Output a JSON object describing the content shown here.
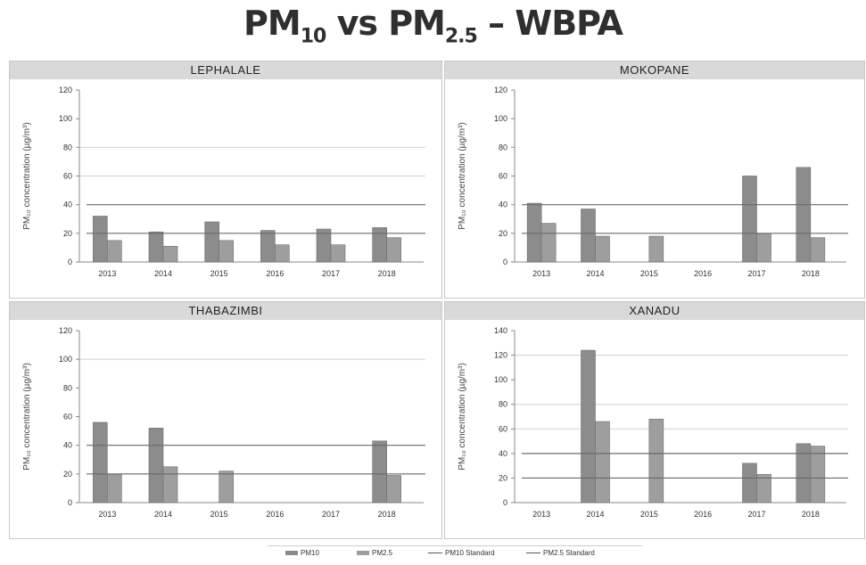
{
  "title": {
    "main": "PM",
    "sub1": "10",
    "mid": " vs PM",
    "sub2": "2.5",
    "tail": " – WBPA"
  },
  "colors": {
    "pm10": "#8c8c8c",
    "pm25": "#9e9e9e",
    "line": "#6a6a6a",
    "grid": "#d0d0d0"
  },
  "ylabel": "PM₁₀ concentration (µg/m³)",
  "legend": {
    "pm10": "PM10",
    "pm25": "PM2.5",
    "pm10_standard": "PM10 Standard",
    "pm25_standard": "PM2.5 Standard"
  },
  "chart_data": [
    {
      "type": "bar",
      "title": "LEPHALALE",
      "categories": [
        "2013",
        "2014",
        "2015",
        "2016",
        "2017",
        "2018"
      ],
      "series": [
        {
          "name": "PM10",
          "values": [
            32,
            21,
            28,
            22,
            23,
            24
          ]
        },
        {
          "name": "PM2.5",
          "values": [
            15,
            11,
            15,
            12,
            12,
            17
          ]
        }
      ],
      "standard_lines": [
        40,
        20
      ],
      "ylim": [
        0,
        120
      ],
      "yticks": [
        0,
        20,
        40,
        60,
        80,
        100,
        120
      ],
      "gridlines": [
        60,
        80
      ]
    },
    {
      "type": "bar",
      "title": "MOKOPANE",
      "categories": [
        "2013",
        "2014",
        "2015",
        "2016",
        "2017",
        "2018"
      ],
      "series": [
        {
          "name": "PM10",
          "values": [
            41,
            37,
            null,
            null,
            60,
            66
          ]
        },
        {
          "name": "PM2.5",
          "values": [
            27,
            18,
            18,
            null,
            20,
            17
          ]
        }
      ],
      "standard_lines": [
        40,
        20
      ],
      "ylim": [
        0,
        120
      ],
      "yticks": [
        0,
        20,
        40,
        60,
        80,
        100,
        120
      ],
      "gridlines": []
    },
    {
      "type": "bar",
      "title": "THABAZIMBI",
      "categories": [
        "2013",
        "2014",
        "2015",
        "2016",
        "2017",
        "2018"
      ],
      "series": [
        {
          "name": "PM10",
          "values": [
            56,
            52,
            null,
            null,
            null,
            43
          ]
        },
        {
          "name": "PM2.5",
          "values": [
            20,
            25,
            22,
            null,
            null,
            19
          ]
        }
      ],
      "standard_lines": [
        40,
        20
      ],
      "ylim": [
        0,
        120
      ],
      "yticks": [
        0,
        20,
        40,
        60,
        80,
        100,
        120
      ],
      "gridlines": [
        100
      ]
    },
    {
      "type": "bar",
      "title": "XANADU",
      "categories": [
        "2013",
        "2014",
        "2015",
        "2016",
        "2017",
        "2018"
      ],
      "series": [
        {
          "name": "PM10",
          "values": [
            null,
            124,
            null,
            null,
            32,
            48
          ]
        },
        {
          "name": "PM2.5",
          "values": [
            null,
            66,
            68,
            null,
            23,
            46
          ]
        }
      ],
      "standard_lines": [
        40,
        20
      ],
      "ylim": [
        0,
        140
      ],
      "yticks": [
        0,
        20,
        40,
        60,
        80,
        100,
        120,
        140
      ],
      "gridlines": [
        60,
        80,
        120
      ]
    }
  ]
}
